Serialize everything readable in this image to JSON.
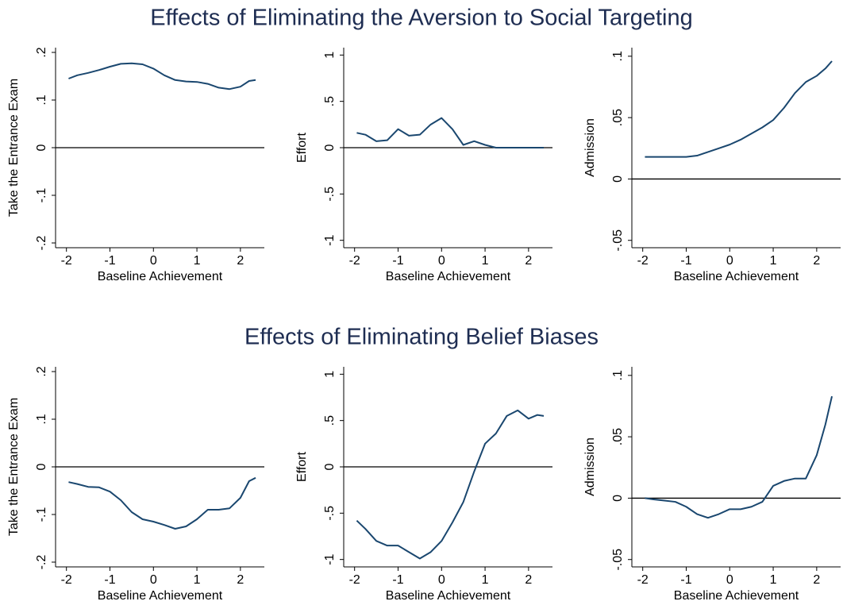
{
  "headings": [
    "Effects of Eliminating the Aversion to Social Targeting",
    "Effects of Eliminating Belief Biases"
  ],
  "chart_data": [
    {
      "type": "line",
      "xlabel": "Baseline Achievement",
      "ylabel": "Take the Entrance Exam",
      "color": "#1a476f",
      "x": [
        -1.95,
        -1.75,
        -1.5,
        -1.25,
        -1,
        -0.75,
        -0.5,
        -0.25,
        0,
        0.25,
        0.5,
        0.75,
        1,
        1.25,
        1.5,
        1.75,
        2,
        2.2,
        2.35
      ],
      "values": [
        0.145,
        0.152,
        0.157,
        0.163,
        0.17,
        0.176,
        0.177,
        0.175,
        0.166,
        0.152,
        0.142,
        0.139,
        0.138,
        0.134,
        0.126,
        0.123,
        0.128,
        0.14,
        0.142
      ],
      "xlim": [
        -2.25,
        2.55
      ],
      "ylim": [
        -0.21,
        0.21
      ],
      "xticks": [
        -2,
        -1,
        0,
        1,
        2
      ],
      "yticks": [
        {
          "value": -0.2,
          "label": "-.2"
        },
        {
          "value": -0.1,
          "label": "-.1"
        },
        0,
        {
          "value": 0.1,
          "label": ".1"
        },
        {
          "value": 0.2,
          "label": ".2"
        }
      ],
      "reference_line": 0
    },
    {
      "type": "line",
      "xlabel": "Baseline Achievement",
      "ylabel": "Effort",
      "color": "#1a476f",
      "x": [
        -1.95,
        -1.75,
        -1.5,
        -1.25,
        -1,
        -0.75,
        -0.5,
        -0.25,
        0,
        0.25,
        0.5,
        0.75,
        1,
        1.25,
        1.5,
        1.75,
        2,
        2.2,
        2.35
      ],
      "values": [
        0.16,
        0.14,
        0.07,
        0.08,
        0.2,
        0.13,
        0.14,
        0.25,
        0.32,
        0.2,
        0.03,
        0.07,
        0.03,
        0,
        0,
        0,
        0,
        0,
        0
      ],
      "xlim": [
        -2.25,
        2.55
      ],
      "ylim": [
        -1.08,
        1.08
      ],
      "xticks": [
        -2,
        -1,
        0,
        1,
        2
      ],
      "yticks": [
        -1,
        {
          "value": -0.5,
          "label": "-.5"
        },
        0,
        {
          "value": 0.5,
          "label": ".5"
        },
        1
      ],
      "reference_line": 0
    },
    {
      "type": "line",
      "xlabel": "Baseline Achievement",
      "ylabel": "Admission",
      "color": "#1a476f",
      "x": [
        -1.95,
        -1.75,
        -1.5,
        -1.25,
        -1,
        -0.75,
        -0.5,
        -0.25,
        0,
        0.25,
        0.5,
        0.75,
        1,
        1.25,
        1.5,
        1.75,
        2,
        2.2,
        2.35
      ],
      "values": [
        0.018,
        0.018,
        0.018,
        0.018,
        0.018,
        0.019,
        0.022,
        0.025,
        0.028,
        0.032,
        0.037,
        0.042,
        0.048,
        0.058,
        0.07,
        0.079,
        0.084,
        0.09,
        0.096
      ],
      "xlim": [
        -2.25,
        2.55
      ],
      "ylim": [
        -0.056,
        0.107
      ],
      "xticks": [
        -2,
        -1,
        0,
        1,
        2
      ],
      "yticks": [
        {
          "value": -0.05,
          "label": "-.05"
        },
        0,
        {
          "value": 0.05,
          "label": ".05"
        },
        {
          "value": 0.1,
          "label": ".1"
        }
      ],
      "reference_line": 0
    },
    {
      "type": "line",
      "xlabel": "Baseline Achievement",
      "ylabel": "Take the Entrance Exam",
      "color": "#1a476f",
      "x": [
        -1.95,
        -1.75,
        -1.5,
        -1.25,
        -1,
        -0.75,
        -0.5,
        -0.25,
        0,
        0.25,
        0.5,
        0.75,
        1,
        1.25,
        1.5,
        1.75,
        2,
        2.2,
        2.35
      ],
      "values": [
        -0.032,
        -0.036,
        -0.042,
        -0.043,
        -0.052,
        -0.07,
        -0.095,
        -0.11,
        -0.115,
        -0.122,
        -0.13,
        -0.125,
        -0.11,
        -0.09,
        -0.09,
        -0.087,
        -0.065,
        -0.03,
        -0.023
      ],
      "xlim": [
        -2.25,
        2.55
      ],
      "ylim": [
        -0.21,
        0.21
      ],
      "xticks": [
        -2,
        -1,
        0,
        1,
        2
      ],
      "yticks": [
        {
          "value": -0.2,
          "label": "-.2"
        },
        {
          "value": -0.1,
          "label": "-.1"
        },
        0,
        {
          "value": 0.1,
          "label": ".1"
        },
        {
          "value": 0.2,
          "label": ".2"
        }
      ],
      "reference_line": 0
    },
    {
      "type": "line",
      "xlabel": "Baseline Achievement",
      "ylabel": "Effort",
      "color": "#1a476f",
      "x": [
        -1.95,
        -1.75,
        -1.5,
        -1.25,
        -1,
        -0.75,
        -0.5,
        -0.25,
        0,
        0.25,
        0.5,
        0.75,
        1,
        1.25,
        1.5,
        1.75,
        2,
        2.2,
        2.35
      ],
      "values": [
        -0.58,
        -0.67,
        -0.8,
        -0.85,
        -0.85,
        -0.92,
        -0.99,
        -0.92,
        -0.8,
        -0.6,
        -0.38,
        -0.05,
        0.25,
        0.36,
        0.55,
        0.61,
        0.52,
        0.56,
        0.55
      ],
      "xlim": [
        -2.25,
        2.55
      ],
      "ylim": [
        -1.08,
        1.08
      ],
      "xticks": [
        -2,
        -1,
        0,
        1,
        2
      ],
      "yticks": [
        -1,
        {
          "value": -0.5,
          "label": "-.5"
        },
        0,
        {
          "value": 0.5,
          "label": ".5"
        },
        1
      ],
      "reference_line": 0
    },
    {
      "type": "line",
      "xlabel": "Baseline Achievement",
      "ylabel": "Admission",
      "color": "#1a476f",
      "x": [
        -1.95,
        -1.75,
        -1.5,
        -1.25,
        -1,
        -0.75,
        -0.5,
        -0.25,
        0,
        0.25,
        0.5,
        0.75,
        1,
        1.25,
        1.5,
        1.75,
        2,
        2.2,
        2.35
      ],
      "values": [
        0,
        -0.001,
        -0.002,
        -0.003,
        -0.007,
        -0.013,
        -0.016,
        -0.013,
        -0.009,
        -0.009,
        -0.007,
        -0.003,
        0.01,
        0.014,
        0.016,
        0.016,
        0.035,
        0.06,
        0.083
      ],
      "xlim": [
        -2.25,
        2.55
      ],
      "ylim": [
        -0.056,
        0.107
      ],
      "xticks": [
        -2,
        -1,
        0,
        1,
        2
      ],
      "yticks": [
        {
          "value": -0.05,
          "label": "-.05"
        },
        0,
        {
          "value": 0.05,
          "label": ".05"
        },
        {
          "value": 0.1,
          "label": ".1"
        }
      ],
      "reference_line": 0
    }
  ]
}
